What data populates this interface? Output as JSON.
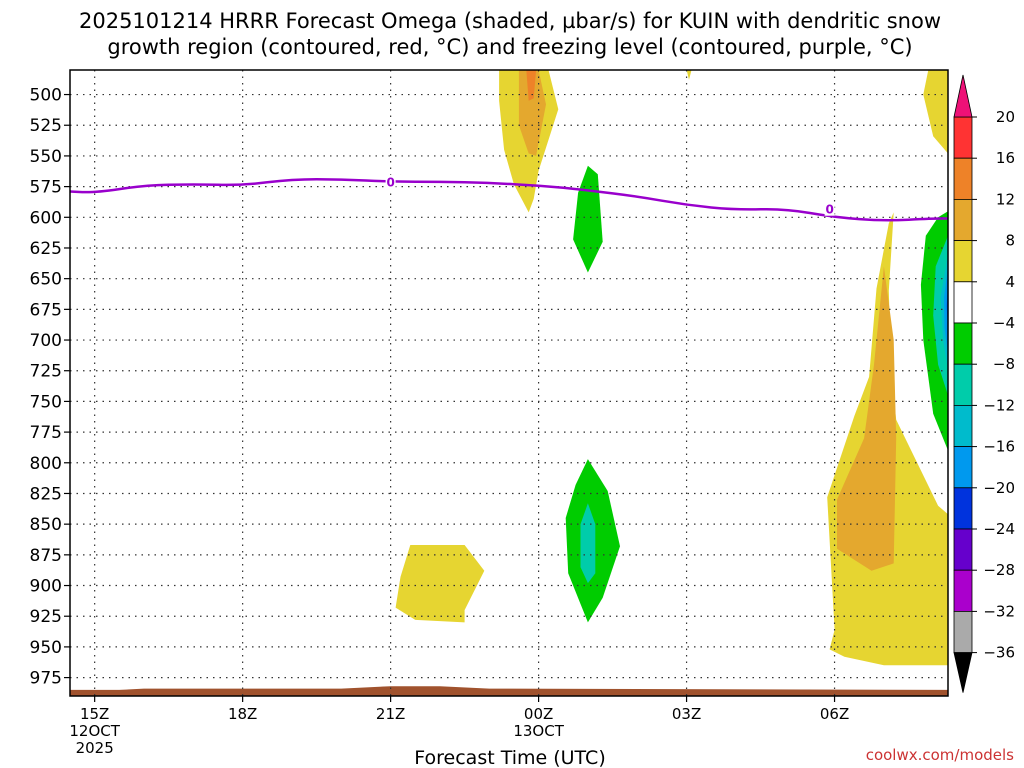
{
  "colors": {
    "freezing_level": "#9900cc",
    "ground": "#a0522d",
    "grid": "#333333",
    "credit": "#cc3333"
  },
  "chart_data": {
    "type": "contour",
    "title_line1": "2025101214 HRRR Forecast Omega (shaded, µbar/s) for KUIN with dendritic snow",
    "title_line2": "growth region (contoured, red, °C) and freezing level (contoured, purple, °C)",
    "xlabel": "Forecast Time (UTC)",
    "credit": "coolwx.com/models",
    "x_range_hours": [
      -0.5,
      17.3
    ],
    "y_range_mb": [
      480,
      990
    ],
    "y_ticks": [
      500,
      525,
      550,
      575,
      600,
      625,
      650,
      675,
      700,
      725,
      750,
      775,
      800,
      825,
      850,
      875,
      900,
      925,
      950,
      975
    ],
    "x_ticks": [
      {
        "hour": 0,
        "line1": "15Z",
        "line2": "12OCT",
        "line3": "2025"
      },
      {
        "hour": 3,
        "line1": "18Z",
        "line2": "",
        "line3": ""
      },
      {
        "hour": 6,
        "line1": "21Z",
        "line2": "",
        "line3": ""
      },
      {
        "hour": 9,
        "line1": "00Z",
        "line2": "13OCT",
        "line3": ""
      },
      {
        "hour": 12,
        "line1": "03Z",
        "line2": "",
        "line3": ""
      },
      {
        "hour": 15,
        "line1": "06Z",
        "line2": "",
        "line3": ""
      }
    ],
    "freezing_level_label": "0",
    "freezing_level": [
      {
        "hour": -0.5,
        "mb": 579
      },
      {
        "hour": 0,
        "mb": 580
      },
      {
        "hour": 1,
        "mb": 574
      },
      {
        "hour": 2,
        "mb": 573
      },
      {
        "hour": 3,
        "mb": 574
      },
      {
        "hour": 4,
        "mb": 569
      },
      {
        "hour": 5,
        "mb": 569
      },
      {
        "hour": 6,
        "mb": 571
      },
      {
        "hour": 7,
        "mb": 571
      },
      {
        "hour": 8,
        "mb": 572
      },
      {
        "hour": 9,
        "mb": 574
      },
      {
        "hour": 10,
        "mb": 578
      },
      {
        "hour": 11,
        "mb": 583
      },
      {
        "hour": 12,
        "mb": 590
      },
      {
        "hour": 13,
        "mb": 594
      },
      {
        "hour": 14,
        "mb": 593
      },
      {
        "hour": 15,
        "mb": 600
      },
      {
        "hour": 16,
        "mb": 603
      },
      {
        "hour": 17,
        "mb": 601
      },
      {
        "hour": 17.3,
        "mb": 601
      }
    ],
    "freezing_level_label_positions": [
      {
        "hour": 6,
        "mb": 571
      },
      {
        "hour": 14.9,
        "mb": 593
      }
    ],
    "ground_surface": [
      {
        "hour": -0.5,
        "mb": 985
      },
      {
        "hour": 0.5,
        "mb": 985
      },
      {
        "hour": 1,
        "mb": 984
      },
      {
        "hour": 5,
        "mb": 984
      },
      {
        "hour": 6,
        "mb": 982
      },
      {
        "hour": 7,
        "mb": 982
      },
      {
        "hour": 8,
        "mb": 984
      },
      {
        "hour": 17.3,
        "mb": 985
      }
    ],
    "omega_regions": [
      {
        "level": 4,
        "color": "#e6d531",
        "points": [
          [
            8.2,
            480
          ],
          [
            9.2,
            480
          ],
          [
            9.4,
            512
          ],
          [
            9.0,
            562
          ],
          [
            8.9,
            585
          ],
          [
            8.8,
            596
          ],
          [
            8.5,
            573
          ],
          [
            8.3,
            545
          ],
          [
            8.2,
            505
          ]
        ]
      },
      {
        "level": 8,
        "color": "#e4a82e",
        "points": [
          [
            8.6,
            480
          ],
          [
            9.0,
            480
          ],
          [
            9.15,
            508
          ],
          [
            8.95,
            550
          ],
          [
            8.8,
            548
          ],
          [
            8.6,
            525
          ]
        ]
      },
      {
        "level": 12,
        "color": "#ee8228",
        "points": [
          [
            8.75,
            480
          ],
          [
            8.95,
            480
          ],
          [
            8.9,
            503
          ],
          [
            8.8,
            505
          ]
        ]
      },
      {
        "level": 4,
        "color": "#e6d531",
        "points": [
          [
            12.0,
            480
          ],
          [
            12.1,
            480
          ],
          [
            12.05,
            488
          ]
        ]
      },
      {
        "level": -4,
        "color": "#00cc00",
        "points": [
          [
            10.0,
            558
          ],
          [
            10.2,
            565
          ],
          [
            10.3,
            620
          ],
          [
            10.0,
            645
          ],
          [
            9.7,
            618
          ],
          [
            9.8,
            580
          ]
        ]
      },
      {
        "level": -4,
        "color": "#00cc00",
        "points": [
          [
            10.0,
            797
          ],
          [
            10.4,
            823
          ],
          [
            10.65,
            868
          ],
          [
            10.3,
            910
          ],
          [
            10.0,
            930
          ],
          [
            9.6,
            890
          ],
          [
            9.55,
            845
          ],
          [
            9.75,
            818
          ]
        ]
      },
      {
        "level": -8,
        "color": "#00ccaa",
        "points": [
          [
            10.0,
            833
          ],
          [
            10.15,
            850
          ],
          [
            10.15,
            890
          ],
          [
            10.0,
            898
          ],
          [
            9.85,
            885
          ],
          [
            9.85,
            850
          ]
        ]
      },
      {
        "level": 4,
        "color": "#e6d531",
        "points": [
          [
            6.4,
            867
          ],
          [
            7.5,
            867
          ],
          [
            7.9,
            888
          ],
          [
            7.5,
            920
          ],
          [
            7.5,
            930
          ],
          [
            6.5,
            928
          ],
          [
            6.1,
            918
          ],
          [
            6.2,
            893
          ]
        ]
      },
      {
        "level": 4,
        "color": "#e6d531",
        "points": [
          [
            16.9,
            480
          ],
          [
            17.3,
            480
          ],
          [
            17.3,
            548
          ],
          [
            17.0,
            534
          ],
          [
            16.8,
            500
          ]
        ]
      },
      {
        "level": 4,
        "color": "#e6d531",
        "points": [
          [
            16.2,
            596
          ],
          [
            16.1,
            660
          ],
          [
            16.15,
            730
          ],
          [
            16.25,
            765
          ],
          [
            17.1,
            835
          ],
          [
            17.3,
            842
          ],
          [
            17.3,
            965
          ],
          [
            16.0,
            965
          ],
          [
            15.2,
            958
          ],
          [
            14.9,
            952
          ],
          [
            15.0,
            936
          ],
          [
            14.85,
            828
          ],
          [
            15.4,
            762
          ],
          [
            15.7,
            730
          ],
          [
            15.85,
            658
          ],
          [
            16.1,
            605
          ]
        ]
      },
      {
        "level": 8,
        "color": "#e4a82e",
        "points": [
          [
            16.0,
            640
          ],
          [
            16.2,
            700
          ],
          [
            16.25,
            780
          ],
          [
            16.2,
            882
          ],
          [
            15.75,
            888
          ],
          [
            15.05,
            870
          ],
          [
            15.05,
            830
          ],
          [
            15.6,
            780
          ],
          [
            15.8,
            720
          ]
        ]
      },
      {
        "level": -4,
        "color": "#00cc00",
        "points": [
          [
            17.3,
            595
          ],
          [
            17.3,
            790
          ],
          [
            17.0,
            760
          ],
          [
            16.8,
            700
          ],
          [
            16.75,
            655
          ],
          [
            16.85,
            615
          ],
          [
            17.1,
            600
          ]
        ]
      },
      {
        "level": -8,
        "color": "#00ccaa",
        "points": [
          [
            17.3,
            615
          ],
          [
            17.3,
            745
          ],
          [
            17.1,
            720
          ],
          [
            17.0,
            680
          ],
          [
            17.05,
            640
          ]
        ]
      },
      {
        "level": -12,
        "color": "#00bbcc",
        "points": [
          [
            17.3,
            630
          ],
          [
            17.3,
            725
          ],
          [
            17.2,
            700
          ],
          [
            17.15,
            665
          ]
        ]
      },
      {
        "level": -16,
        "color": "#0099ee",
        "points": [
          [
            17.3,
            640
          ],
          [
            17.3,
            712
          ],
          [
            17.23,
            690
          ],
          [
            17.22,
            665
          ]
        ]
      },
      {
        "level": -20,
        "color": "#0066ff",
        "points": [
          [
            17.3,
            655
          ],
          [
            17.3,
            690
          ],
          [
            17.27,
            672
          ]
        ]
      }
    ],
    "colorbar": {
      "segments": [
        {
          "from": 16,
          "to": 20,
          "color": "#ff3333"
        },
        {
          "from": 12,
          "to": 16,
          "color": "#ee8228"
        },
        {
          "from": 8,
          "to": 12,
          "color": "#e4a82e"
        },
        {
          "from": 4,
          "to": 8,
          "color": "#e6d531"
        },
        {
          "from": -4,
          "to": 4,
          "color": "#ffffff"
        },
        {
          "from": -8,
          "to": -4,
          "color": "#00cc00"
        },
        {
          "from": -12,
          "to": -8,
          "color": "#00ccaa"
        },
        {
          "from": -16,
          "to": -12,
          "color": "#00bbcc"
        },
        {
          "from": -20,
          "to": -16,
          "color": "#0099ee"
        },
        {
          "from": -24,
          "to": -20,
          "color": "#0033dd"
        },
        {
          "from": -28,
          "to": -24,
          "color": "#6600cc"
        },
        {
          "from": -32,
          "to": -28,
          "color": "#aa00cc"
        },
        {
          "from": -36,
          "to": -32,
          "color": "#aaaaaa"
        }
      ],
      "top_arrow_color": "#ee1177",
      "bottom_arrow_color": "#000000",
      "ticks": [
        "20",
        "16",
        "12",
        "8",
        "4",
        "−4",
        "−8",
        "−12",
        "−16",
        "−20",
        "−24",
        "−28",
        "−32",
        "−36"
      ],
      "tick_values": [
        20,
        16,
        12,
        8,
        4,
        -4,
        -8,
        -12,
        -16,
        -20,
        -24,
        -28,
        -32,
        -36
      ]
    }
  }
}
